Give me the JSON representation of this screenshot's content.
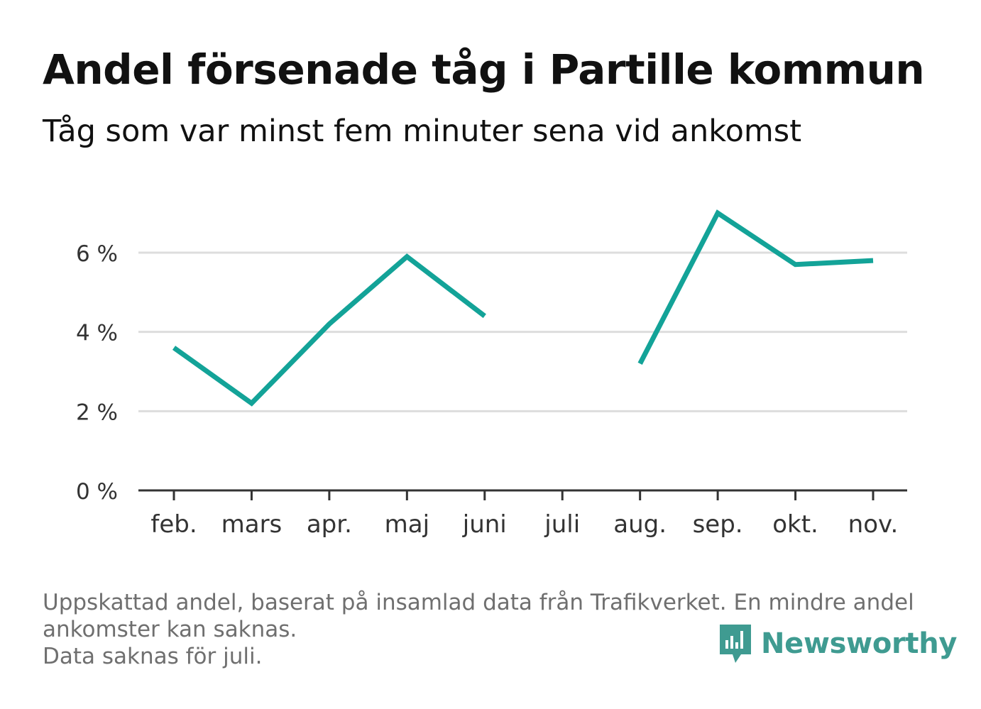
{
  "title": "Andel försenade tåg i Partille kommun",
  "subtitle": "Tåg som var minst fem minuter sena vid ankomst",
  "footer": {
    "line1": "Uppskattad andel, baserat på insamlad data från Trafikverket. En mindre andel",
    "line2": "ankomster kan saknas.",
    "line3": "Data saknas för juli."
  },
  "brand": {
    "name": "Newsworthy",
    "color": "#3f9b91"
  },
  "colors": {
    "line": "#13a398",
    "grid": "#dddddd",
    "axis": "#333333"
  },
  "chart_data": {
    "type": "line",
    "categories": [
      "feb.",
      "mars",
      "apr.",
      "maj",
      "juni",
      "juli",
      "aug.",
      "sep.",
      "okt.",
      "nov."
    ],
    "series": [
      {
        "values": [
          3.6,
          2.2,
          4.2,
          5.9,
          4.4,
          null,
          3.2,
          7.0,
          5.7,
          5.8
        ]
      }
    ],
    "yticks": [
      0,
      2,
      4,
      6
    ],
    "ytick_labels": [
      "0 %",
      "2 %",
      "4 %",
      "6 %"
    ],
    "ylim": [
      0,
      7
    ],
    "grid": true,
    "legend": "none"
  }
}
